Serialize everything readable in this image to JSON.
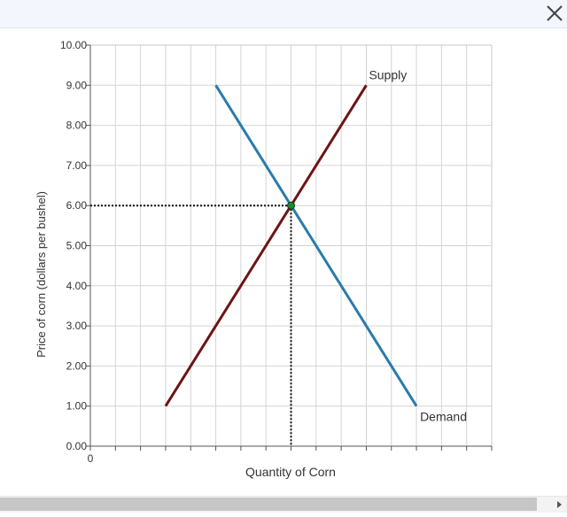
{
  "window": {
    "close_icon": "close-x-icon"
  },
  "chart_data": {
    "type": "line",
    "ylabel": "Price of corn (dollars per bushel)",
    "xlabel": "Quantity of Corn",
    "ylim": [
      0,
      10
    ],
    "xlim": [
      0,
      16
    ],
    "yticks": [
      "0.00",
      "1.00",
      "2.00",
      "3.00",
      "4.00",
      "5.00",
      "6.00",
      "7.00",
      "8.00",
      "9.00",
      "10.00"
    ],
    "xtick_labels": [
      "0"
    ],
    "grid": true,
    "series": [
      {
        "name": "Supply",
        "color": "#6d1414",
        "x": [
          3,
          11
        ],
        "y": [
          1,
          9
        ]
      },
      {
        "name": "Demand",
        "color": "#2b7bab",
        "x": [
          5,
          13
        ],
        "y": [
          9,
          1
        ]
      }
    ],
    "equilibrium": {
      "x": 8,
      "y": 6,
      "color": "#1e8a2e"
    }
  },
  "scrollbar": {
    "arrow_icon": "scroll-right-arrow-icon"
  }
}
